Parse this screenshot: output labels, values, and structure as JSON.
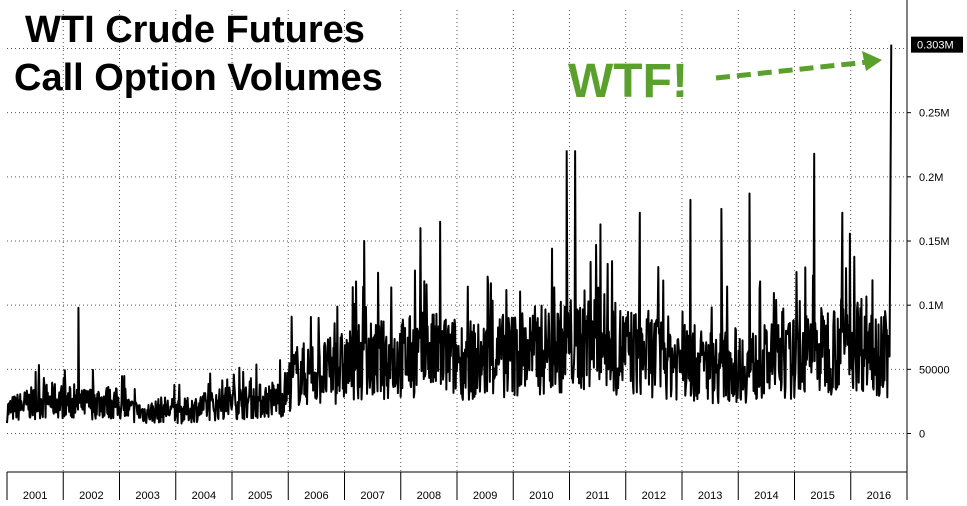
{
  "chart_data": {
    "type": "line",
    "title_lines": [
      "WTI Crude Futures",
      "Call Option Volumes"
    ],
    "annotation": "WTF!",
    "annotation_color": "#5aa02c",
    "line_color": "#000000",
    "grid": true,
    "ylim": [
      -30000,
      330000
    ],
    "yticks": [
      {
        "value": 0,
        "label": "0"
      },
      {
        "value": 50000,
        "label": "50000"
      },
      {
        "value": 100000,
        "label": "0.1M"
      },
      {
        "value": 150000,
        "label": "0.15M"
      },
      {
        "value": 200000,
        "label": "0.2M"
      },
      {
        "value": 250000,
        "label": "0.25M"
      }
    ],
    "last_value_label": "0.303M",
    "last_value": 303000,
    "xlim": [
      2001.0,
      2017.0
    ],
    "year_ticks": [
      "2001",
      "2002",
      "2003",
      "2004",
      "2005",
      "2006",
      "2007",
      "2008",
      "2009",
      "2010",
      "2011",
      "2012",
      "2013",
      "2014",
      "2015",
      "2016"
    ],
    "series": [
      {
        "x": [
          2001.0,
          2001.3,
          2001.6,
          2001.9,
          2002.1,
          2002.3,
          2002.6,
          2002.9,
          2003.2,
          2003.5,
          2003.8,
          2004.1,
          2004.4,
          2004.7,
          2005.0,
          2005.3,
          2005.6,
          2005.9,
          2006.1,
          2006.4,
          2006.7,
          2007.0,
          2007.3,
          2007.6,
          2007.9,
          2008.2,
          2008.5,
          2008.8,
          2009.1,
          2009.4,
          2009.7,
          2010.0,
          2010.3,
          2010.6,
          2010.9,
          2011.2,
          2011.5,
          2011.8,
          2012.1,
          2012.4,
          2012.7,
          2013.0,
          2013.3,
          2013.6,
          2013.9,
          2014.2,
          2014.5,
          2014.8,
          2015.1,
          2015.4,
          2015.7,
          2016.0,
          2016.3,
          2016.5,
          2016.6,
          2016.66,
          2016.69,
          2016.72
        ],
        "y": [
          18000,
          22000,
          25000,
          26000,
          24000,
          22000,
          25000,
          24000,
          18000,
          16000,
          19000,
          17000,
          20000,
          22000,
          25000,
          24000,
          26000,
          28000,
          45000,
          47000,
          48000,
          52000,
          55000,
          57000,
          58000,
          60000,
          62000,
          60000,
          58000,
          56000,
          60000,
          62000,
          64000,
          66000,
          68000,
          72000,
          75000,
          66000,
          64000,
          62000,
          60000,
          56000,
          54000,
          52000,
          54000,
          52000,
          55000,
          56000,
          60000,
          63000,
          68000,
          72000,
          72000,
          65000,
          63000,
          60000,
          303000,
          303000
        ],
        "spikes": [
          {
            "x": 2002.27,
            "y": 98000
          },
          {
            "x": 2007.35,
            "y": 150000
          },
          {
            "x": 2008.35,
            "y": 160000
          },
          {
            "x": 2008.7,
            "y": 165000
          },
          {
            "x": 2010.95,
            "y": 220000
          },
          {
            "x": 2011.1,
            "y": 220000
          },
          {
            "x": 2011.55,
            "y": 163000
          },
          {
            "x": 2012.25,
            "y": 172000
          },
          {
            "x": 2013.15,
            "y": 182000
          },
          {
            "x": 2013.7,
            "y": 175000
          },
          {
            "x": 2014.2,
            "y": 187000
          },
          {
            "x": 2015.35,
            "y": 218000
          },
          {
            "x": 2015.85,
            "y": 172000
          }
        ]
      }
    ]
  }
}
